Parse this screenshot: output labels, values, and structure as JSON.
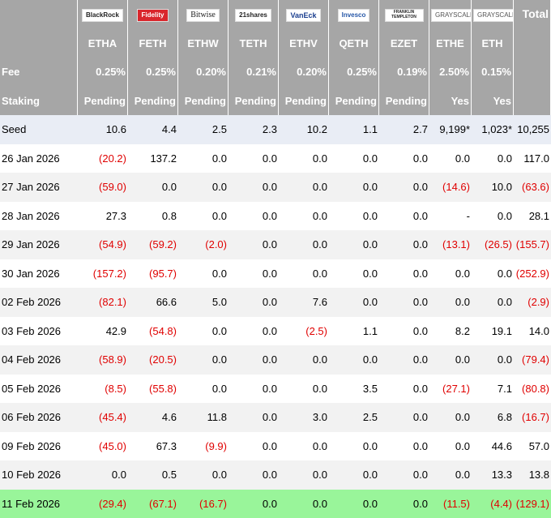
{
  "table": {
    "logos": [
      "BlackRock",
      "Fidelity",
      "Bitwise",
      "21shares",
      "VanEck",
      "Invesco",
      "FRANKLIN TEMPLETON",
      "GRAYSCALE",
      "GRAYSCALE"
    ],
    "total_label": "Total",
    "tickers": [
      "ETHA",
      "FETH",
      "ETHW",
      "TETH",
      "ETHV",
      "QETH",
      "EZET",
      "ETHE",
      "ETH"
    ],
    "header_rows": [
      {
        "label": "Fee",
        "cells": [
          "0.25%",
          "0.25%",
          "0.20%",
          "0.21%",
          "0.20%",
          "0.25%",
          "0.19%",
          "2.50%",
          "0.15%"
        ]
      },
      {
        "label": "Staking",
        "cells": [
          "Pending",
          "Pending",
          "Pending",
          "Pending",
          "Pending",
          "Pending",
          "Pending",
          "Yes",
          "Yes"
        ]
      }
    ],
    "rows": [
      {
        "label": "Seed",
        "cells": [
          "10.6",
          "4.4",
          "2.5",
          "2.3",
          "10.2",
          "1.1",
          "2.7",
          "9,199*",
          "1,023*",
          "10,255"
        ]
      },
      {
        "label": "26 Jan 2026",
        "cells": [
          "(20.2)",
          "137.2",
          "0.0",
          "0.0",
          "0.0",
          "0.0",
          "0.0",
          "0.0",
          "0.0",
          "117.0"
        ]
      },
      {
        "label": "27 Jan 2026",
        "cells": [
          "(59.0)",
          "0.0",
          "0.0",
          "0.0",
          "0.0",
          "0.0",
          "0.0",
          "(14.6)",
          "10.0",
          "(63.6)"
        ]
      },
      {
        "label": "28 Jan 2026",
        "cells": [
          "27.3",
          "0.8",
          "0.0",
          "0.0",
          "0.0",
          "0.0",
          "0.0",
          "-",
          "0.0",
          "28.1"
        ]
      },
      {
        "label": "29 Jan 2026",
        "cells": [
          "(54.9)",
          "(59.2)",
          "(2.0)",
          "0.0",
          "0.0",
          "0.0",
          "0.0",
          "(13.1)",
          "(26.5)",
          "(155.7)"
        ]
      },
      {
        "label": "30 Jan 2026",
        "cells": [
          "(157.2)",
          "(95.7)",
          "0.0",
          "0.0",
          "0.0",
          "0.0",
          "0.0",
          "0.0",
          "0.0",
          "(252.9)"
        ]
      },
      {
        "label": "02 Feb 2026",
        "cells": [
          "(82.1)",
          "66.6",
          "5.0",
          "0.0",
          "7.6",
          "0.0",
          "0.0",
          "0.0",
          "0.0",
          "(2.9)"
        ]
      },
      {
        "label": "03 Feb 2026",
        "cells": [
          "42.9",
          "(54.8)",
          "0.0",
          "0.0",
          "(2.5)",
          "1.1",
          "0.0",
          "8.2",
          "19.1",
          "14.0"
        ]
      },
      {
        "label": "04 Feb 2026",
        "cells": [
          "(58.9)",
          "(20.5)",
          "0.0",
          "0.0",
          "0.0",
          "0.0",
          "0.0",
          "0.0",
          "0.0",
          "(79.4)"
        ]
      },
      {
        "label": "05 Feb 2026",
        "cells": [
          "(8.5)",
          "(55.8)",
          "0.0",
          "0.0",
          "0.0",
          "3.5",
          "0.0",
          "(27.1)",
          "7.1",
          "(80.8)"
        ]
      },
      {
        "label": "06 Feb 2026",
        "cells": [
          "(45.4)",
          "4.6",
          "11.8",
          "0.0",
          "3.0",
          "2.5",
          "0.0",
          "0.0",
          "6.8",
          "(16.7)"
        ]
      },
      {
        "label": "09 Feb 2026",
        "cells": [
          "(45.0)",
          "67.3",
          "(9.9)",
          "0.0",
          "0.0",
          "0.0",
          "0.0",
          "0.0",
          "44.6",
          "57.0"
        ]
      },
      {
        "label": "10 Feb 2026",
        "cells": [
          "0.0",
          "0.5",
          "0.0",
          "0.0",
          "0.0",
          "0.0",
          "0.0",
          "0.0",
          "13.3",
          "13.8"
        ]
      },
      {
        "label": "11 Feb 2026",
        "cells": [
          "(29.4)",
          "(67.1)",
          "(16.7)",
          "0.0",
          "0.0",
          "0.0",
          "0.0",
          "(11.5)",
          "(4.4)",
          "(129.1)"
        ]
      }
    ]
  }
}
